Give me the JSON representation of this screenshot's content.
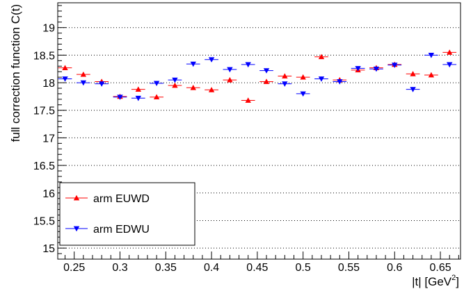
{
  "chart_data": {
    "type": "scatter",
    "title": "",
    "xlabel": "|t| [GeV",
    "xlabel_sup": "2",
    "xlabel_close": "]",
    "ylabel": "full correction function C(t)",
    "xlim": [
      0.232,
      0.672
    ],
    "ylim": [
      14.8,
      19.45
    ],
    "x_ticks": [
      0.25,
      0.3,
      0.35,
      0.4,
      0.45,
      0.5,
      0.55,
      0.6,
      0.65
    ],
    "x_tick_labels": [
      "0.25",
      "0.3",
      "0.35",
      "0.4",
      "0.45",
      "0.5",
      "0.55",
      "0.6",
      "0.65"
    ],
    "y_ticks": [
      15,
      15.5,
      16,
      16.5,
      17,
      17.5,
      18,
      18.5,
      19
    ],
    "y_tick_labels": [
      "15",
      "15.5",
      "16",
      "16.5",
      "17",
      "17.5",
      "18",
      "18.5",
      "19"
    ],
    "grid": "horizontal dotted",
    "legend_position": "bottom-left",
    "bin_half_width": 0.0075,
    "series": [
      {
        "name": "arm EUWD",
        "color": "#ff0000",
        "marker": "triangle-up",
        "x": [
          0.24,
          0.26,
          0.28,
          0.3,
          0.32,
          0.34,
          0.36,
          0.38,
          0.4,
          0.42,
          0.44,
          0.46,
          0.48,
          0.5,
          0.52,
          0.54,
          0.56,
          0.58,
          0.6,
          0.62,
          0.64,
          0.66
        ],
        "y": [
          18.27,
          18.15,
          18.02,
          17.75,
          17.88,
          17.74,
          17.95,
          17.91,
          17.87,
          18.05,
          17.68,
          18.02,
          18.12,
          18.1,
          18.47,
          18.05,
          18.23,
          18.27,
          18.33,
          18.16,
          18.14,
          18.55
        ],
        "yerr": [
          0.04,
          0.04,
          0.04,
          0.04,
          0.04,
          0.04,
          0.04,
          0.04,
          0.04,
          0.04,
          0.04,
          0.04,
          0.04,
          0.04,
          0.04,
          0.04,
          0.04,
          0.04,
          0.04,
          0.04,
          0.04,
          0.04
        ]
      },
      {
        "name": "arm EDWU",
        "color": "#0000ff",
        "marker": "triangle-down",
        "x": [
          0.24,
          0.26,
          0.28,
          0.3,
          0.32,
          0.34,
          0.36,
          0.38,
          0.4,
          0.42,
          0.44,
          0.46,
          0.48,
          0.5,
          0.52,
          0.54,
          0.56,
          0.58,
          0.6,
          0.62,
          0.64,
          0.66
        ],
        "y": [
          18.07,
          18.0,
          17.98,
          17.74,
          17.72,
          17.99,
          18.05,
          18.34,
          18.42,
          18.24,
          18.33,
          18.22,
          17.98,
          17.8,
          18.07,
          18.02,
          18.26,
          18.25,
          18.32,
          17.88,
          18.5,
          18.33
        ],
        "yerr": [
          0.04,
          0.04,
          0.04,
          0.04,
          0.04,
          0.04,
          0.04,
          0.04,
          0.04,
          0.04,
          0.04,
          0.04,
          0.04,
          0.04,
          0.04,
          0.04,
          0.04,
          0.04,
          0.04,
          0.04,
          0.04,
          0.04
        ]
      }
    ]
  }
}
